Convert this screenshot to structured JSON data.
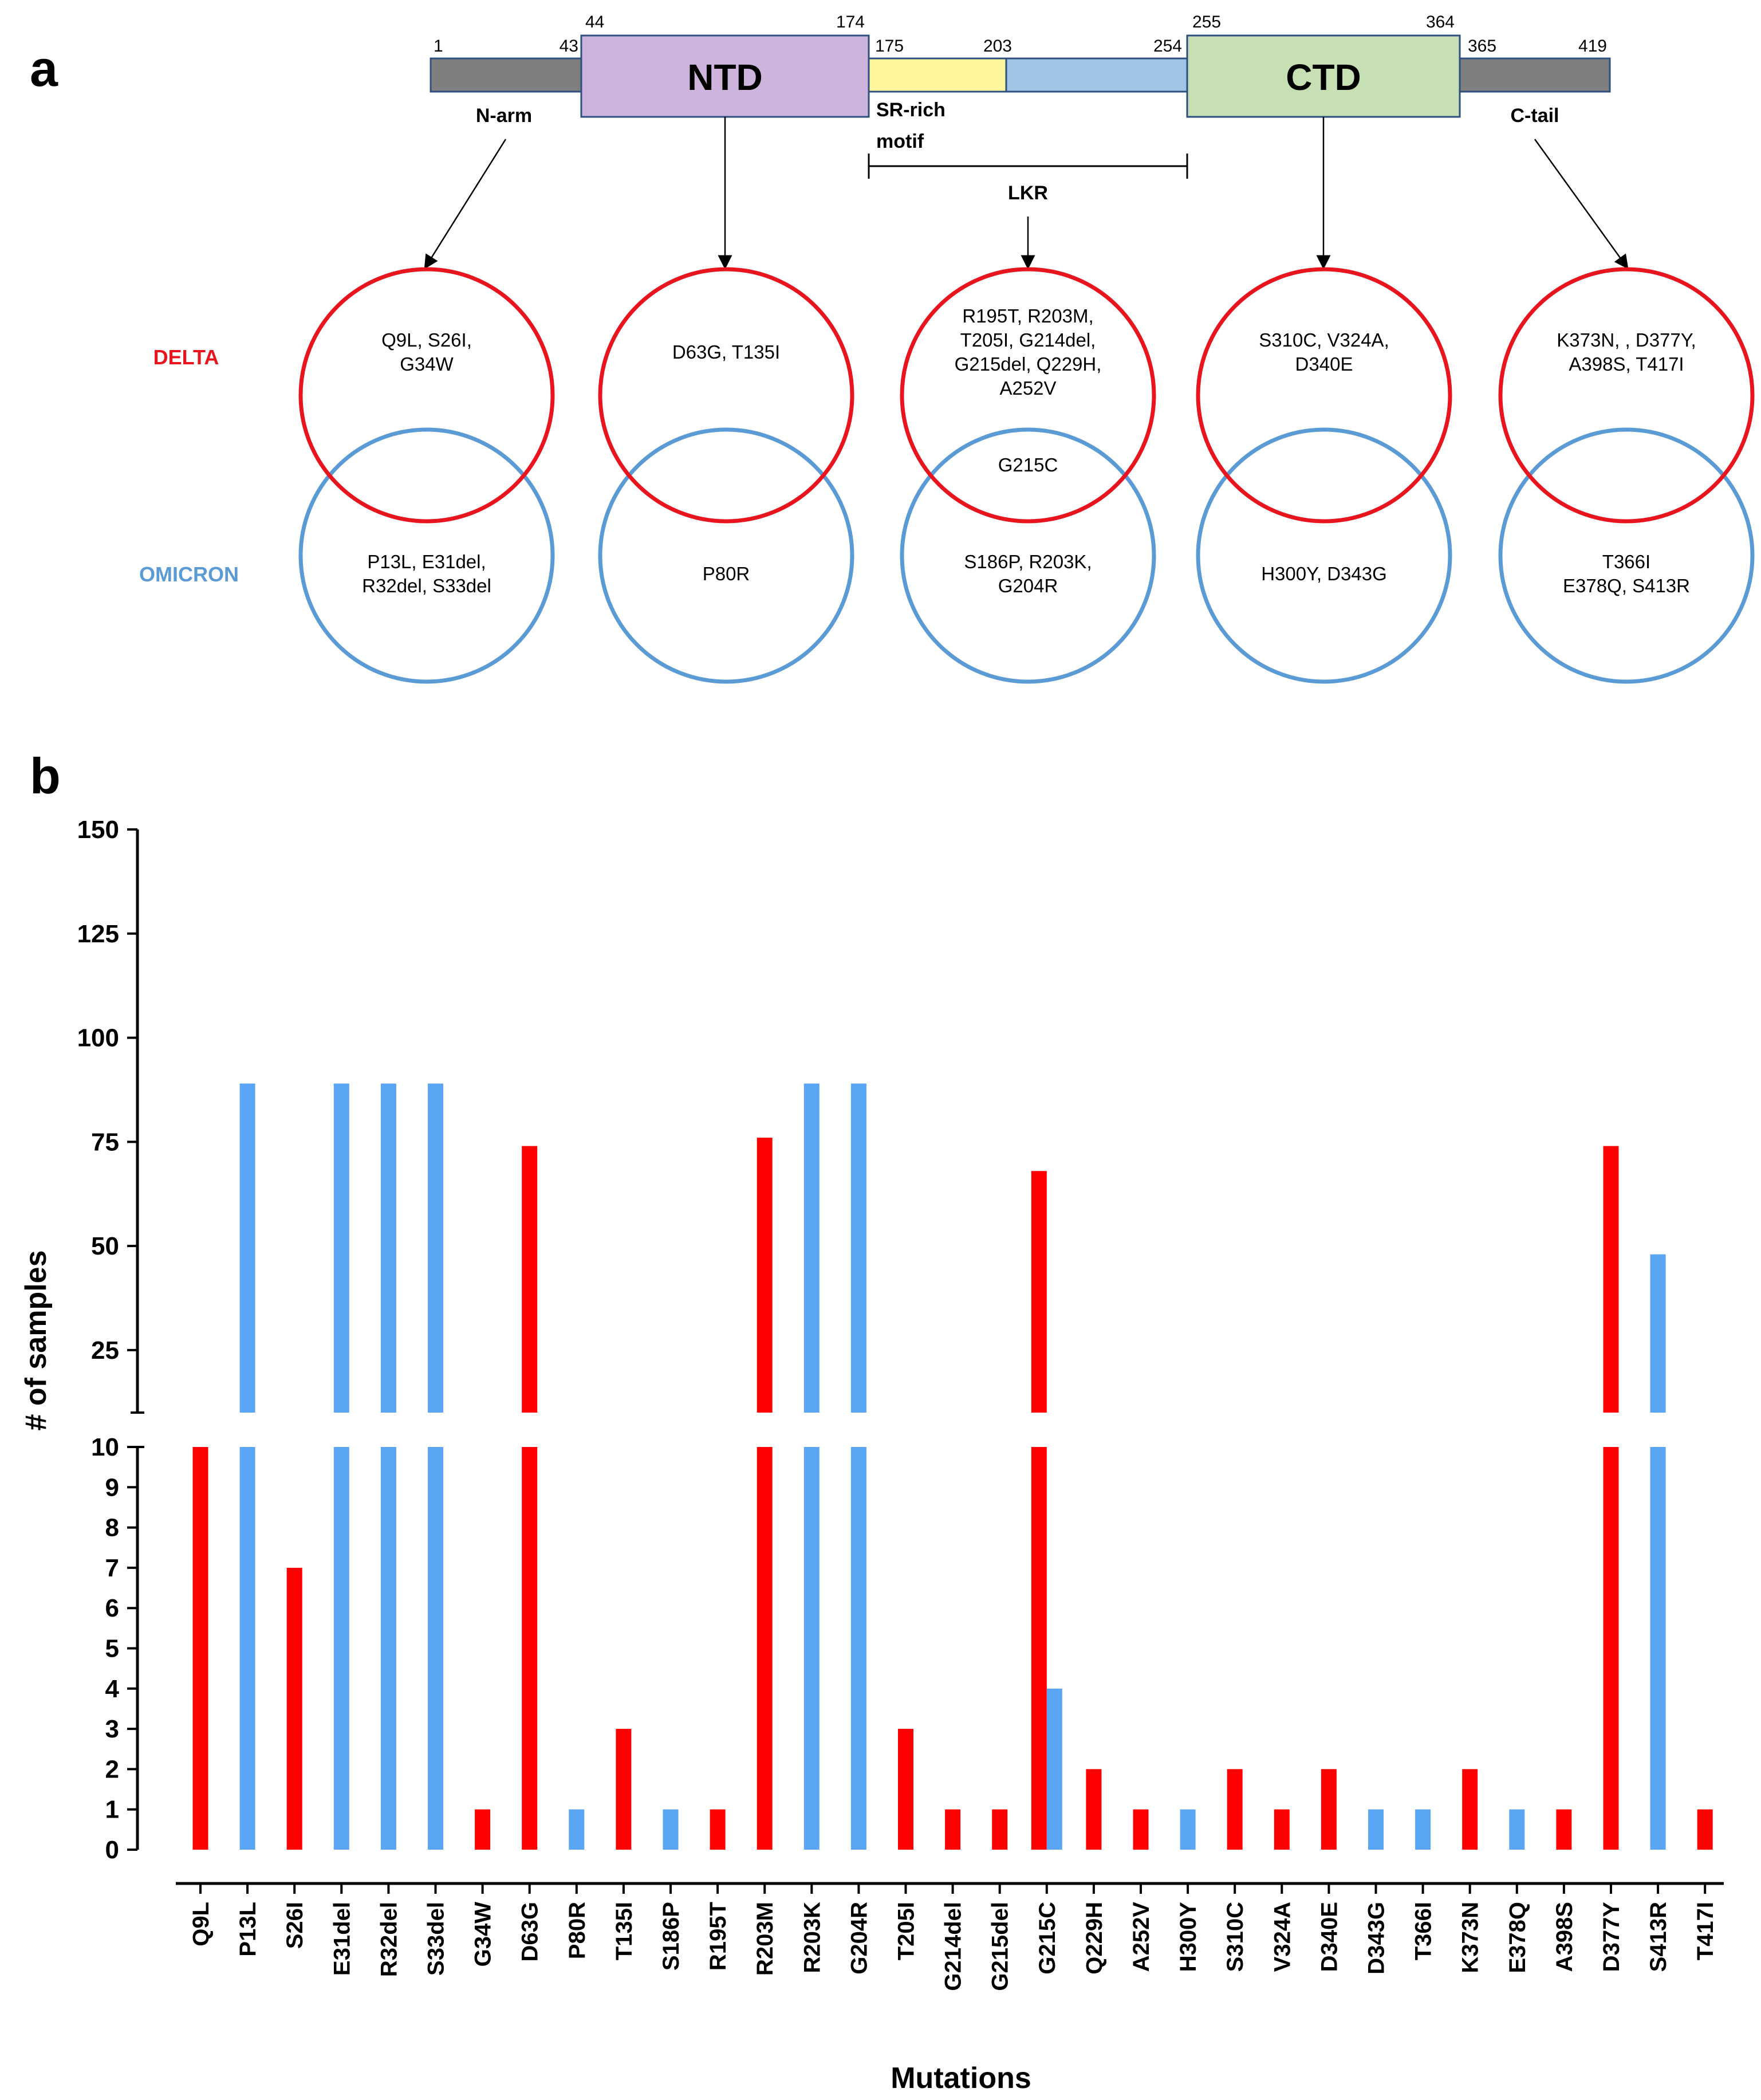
{
  "panel_a": {
    "label": "a",
    "domains": [
      {
        "name": "",
        "start": "1",
        "end": "43",
        "fill": "#7f7f7f"
      },
      {
        "name": "NTD",
        "start": "44",
        "end": "174",
        "fill": "#cdb4dc"
      },
      {
        "name": "",
        "start": "175",
        "end": "203",
        "fill": "#fff59a"
      },
      {
        "name": "",
        "start": "",
        "end": "254",
        "fill": "#9fc4e6"
      },
      {
        "name": "CTD",
        "start": "255",
        "end": "364",
        "fill": "#c6e0b4"
      },
      {
        "name": "",
        "start": "365",
        "end": "419",
        "fill": "#7f7f7f"
      }
    ],
    "region_labels": {
      "n_arm": "N-arm",
      "sr_rich_line1": "SR-rich",
      "sr_rich_line2": "motif",
      "lkr": "LKR",
      "c_tail": "C-tail"
    },
    "variants": {
      "delta": {
        "label": "DELTA",
        "color": "#e8141e"
      },
      "omicron": {
        "label": "OMICRON",
        "color": "#5b9bd5"
      }
    },
    "venns": [
      {
        "region": "N-arm",
        "delta": [
          "Q9L, S26I,",
          "G34W"
        ],
        "shared": [],
        "omicron": [
          "P13L, E31del,",
          "R32del, S33del"
        ]
      },
      {
        "region": "NTD",
        "delta": [
          "D63G, T135I"
        ],
        "shared": [],
        "omicron": [
          "P80R"
        ]
      },
      {
        "region": "LKR",
        "delta": [
          "R195T, R203M,",
          "T205I, G214del,",
          "G215del, Q229H,",
          "A252V"
        ],
        "shared": [
          "G215C"
        ],
        "omicron": [
          "S186P, R203K,",
          "G204R"
        ]
      },
      {
        "region": "CTD",
        "delta": [
          "S310C, V324A,",
          "D340E"
        ],
        "shared": [],
        "omicron": [
          "H300Y, D343G"
        ]
      },
      {
        "region": "C-tail",
        "delta": [
          "K373N, , D377Y,",
          "A398S, T417I"
        ],
        "shared": [],
        "omicron": [
          "T366I",
          "E378Q, S413R"
        ]
      }
    ]
  },
  "panel_b": {
    "label": "b"
  },
  "chart_data": {
    "type": "bar",
    "title": "",
    "xlabel": "Mutations",
    "ylabel": "# of samples",
    "y_axis_break": true,
    "ylim_lower": [
      0,
      10
    ],
    "ylim_upper": [
      10,
      150
    ],
    "yticks_lower": [
      "0",
      "1",
      "2",
      "3",
      "4",
      "5",
      "6",
      "7",
      "8",
      "9",
      "10"
    ],
    "yticks_upper": [
      "25",
      "50",
      "75",
      "100",
      "125",
      "150"
    ],
    "categories": [
      "Q9L",
      "P13L",
      "S26I",
      "E31del",
      "R32del",
      "S33del",
      "G34W",
      "D63G",
      "P80R",
      "T135I",
      "S186P",
      "R195T",
      "R203M",
      "R203K",
      "G204R",
      "T205I",
      "G214del",
      "G215del",
      "G215C",
      "Q229H",
      "A252V",
      "H300Y",
      "S310C",
      "V324A",
      "D340E",
      "D343G",
      "T366I",
      "K373N",
      "E378Q",
      "A398S",
      "D377Y",
      "S413R",
      "T417I"
    ],
    "series": [
      {
        "name": "DELTA",
        "color": "#ff0000",
        "values": [
          10,
          0,
          7,
          0,
          0,
          0,
          1,
          74,
          0,
          3,
          0,
          1,
          76,
          0,
          0,
          3,
          1,
          1,
          68,
          2,
          1,
          0,
          2,
          1,
          2,
          0,
          0,
          2,
          0,
          1,
          74,
          0,
          1
        ]
      },
      {
        "name": "OMICRON",
        "color": "#5aa6f4",
        "values": [
          0,
          89,
          0,
          89,
          89,
          89,
          0,
          0,
          1,
          0,
          1,
          0,
          0,
          89,
          89,
          0,
          0,
          0,
          4,
          0,
          0,
          1,
          0,
          0,
          0,
          1,
          1,
          0,
          1,
          0,
          0,
          48,
          0
        ]
      }
    ]
  }
}
